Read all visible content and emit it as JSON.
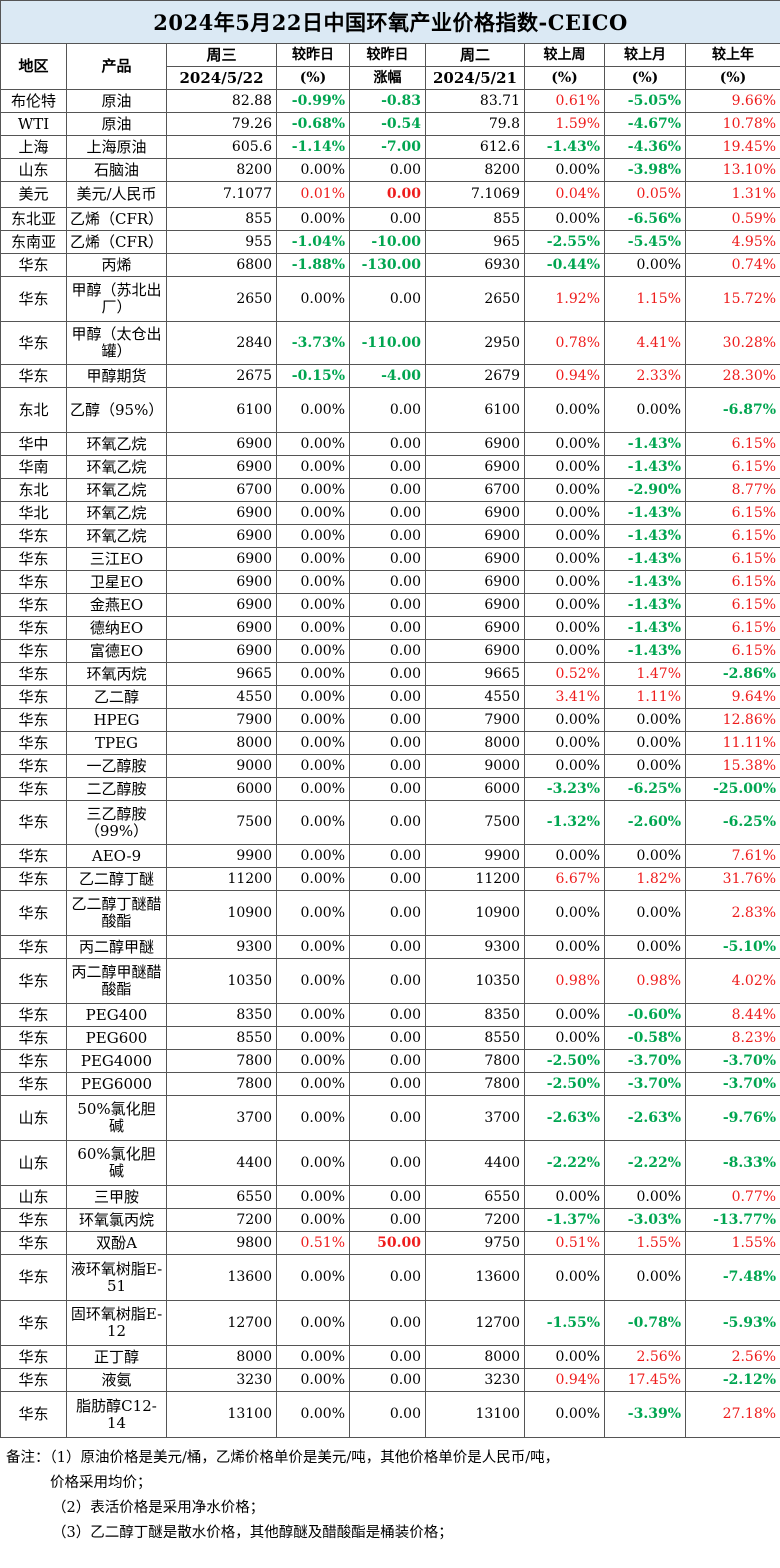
{
  "title": "2024年5月22日中国环氧产业价格指数-CEICO",
  "headers": {
    "region": "地区",
    "product": "产品",
    "wed": "周三",
    "wed_date": "2024/5/22",
    "vs_yesterday_a": "较昨日",
    "vs_yesterday_a_unit": "(%)",
    "vs_yesterday_b": "较昨日",
    "vs_yesterday_b_unit": "涨幅",
    "tue": "周二",
    "tue_date": "2024/5/21",
    "vs_week": "较上周",
    "vs_week_unit": "(%)",
    "vs_month": "较上月",
    "vs_month_unit": "(%)",
    "vs_year": "较上年",
    "vs_year_unit": "(%)"
  },
  "rows": [
    {
      "region": "布伦特",
      "product": "原油",
      "wed": "82.88",
      "pct": "-0.99%",
      "chg": "-0.83",
      "tue": "83.71",
      "wk": "0.61%",
      "mo": "-5.05%",
      "yr": "9.66%"
    },
    {
      "region": "WTI",
      "product": "原油",
      "wed": "79.26",
      "pct": "-0.68%",
      "chg": "-0.54",
      "tue": "79.8",
      "wk": "1.59%",
      "mo": "-4.67%",
      "yr": "10.78%"
    },
    {
      "region": "上海",
      "product": "上海原油",
      "wed": "605.6",
      "pct": "-1.14%",
      "chg": "-7.00",
      "tue": "612.6",
      "wk": "-1.43%",
      "mo": "-4.36%",
      "yr": "19.45%"
    },
    {
      "region": "山东",
      "product": "石脑油",
      "wed": "8200",
      "pct": "0.00%",
      "chg": "0.00",
      "tue": "8200",
      "wk": "0.00%",
      "mo": "-3.98%",
      "yr": "13.10%"
    },
    {
      "region": "美元",
      "product": "美元/人民币",
      "wed": "7.1077",
      "pct": "0.01%",
      "chg": "0.00",
      "tue": "7.1069",
      "wk": "0.04%",
      "mo": "0.05%",
      "yr": "1.31%"
    },
    {
      "region": "东北亚",
      "product": "乙烯（CFR）",
      "wed": "855",
      "pct": "0.00%",
      "chg": "0.00",
      "tue": "855",
      "wk": "0.00%",
      "mo": "-6.56%",
      "yr": "0.59%"
    },
    {
      "region": "东南亚",
      "product": "乙烯（CFR）",
      "wed": "955",
      "pct": "-1.04%",
      "chg": "-10.00",
      "tue": "965",
      "wk": "-2.55%",
      "mo": "-5.45%",
      "yr": "4.95%"
    },
    {
      "region": "华东",
      "product": "丙烯",
      "wed": "6800",
      "pct": "-1.88%",
      "chg": "-130.00",
      "tue": "6930",
      "wk": "-0.44%",
      "mo": "0.00%",
      "yr": "0.74%"
    },
    {
      "region": "华东",
      "product": "甲醇（苏北出厂）",
      "wed": "2650",
      "pct": "0.00%",
      "chg": "0.00",
      "tue": "2650",
      "wk": "1.92%",
      "mo": "1.15%",
      "yr": "15.72%"
    },
    {
      "region": "华东",
      "product": "甲醇（太仓出罐）",
      "wed": "2840",
      "pct": "-3.73%",
      "chg": "-110.00",
      "tue": "2950",
      "wk": "0.78%",
      "mo": "4.41%",
      "yr": "30.28%"
    },
    {
      "region": "华东",
      "product": "甲醇期货",
      "wed": "2675",
      "pct": "-0.15%",
      "chg": "-4.00",
      "tue": "2679",
      "wk": "0.94%",
      "mo": "2.33%",
      "yr": "28.30%"
    },
    {
      "region": "东北",
      "product": "乙醇（95%）",
      "wed": "6100",
      "pct": "0.00%",
      "chg": "0.00",
      "tue": "6100",
      "wk": "0.00%",
      "mo": "0.00%",
      "yr": "-6.87%"
    },
    {
      "region": "华中",
      "product": "环氧乙烷",
      "wed": "6900",
      "pct": "0.00%",
      "chg": "0.00",
      "tue": "6900",
      "wk": "0.00%",
      "mo": "-1.43%",
      "yr": "6.15%"
    },
    {
      "region": "华南",
      "product": "环氧乙烷",
      "wed": "6900",
      "pct": "0.00%",
      "chg": "0.00",
      "tue": "6900",
      "wk": "0.00%",
      "mo": "-1.43%",
      "yr": "6.15%"
    },
    {
      "region": "东北",
      "product": "环氧乙烷",
      "wed": "6700",
      "pct": "0.00%",
      "chg": "0.00",
      "tue": "6700",
      "wk": "0.00%",
      "mo": "-2.90%",
      "yr": "8.77%"
    },
    {
      "region": "华北",
      "product": "环氧乙烷",
      "wed": "6900",
      "pct": "0.00%",
      "chg": "0.00",
      "tue": "6900",
      "wk": "0.00%",
      "mo": "-1.43%",
      "yr": "6.15%"
    },
    {
      "region": "华东",
      "product": "环氧乙烷",
      "wed": "6900",
      "pct": "0.00%",
      "chg": "0.00",
      "tue": "6900",
      "wk": "0.00%",
      "mo": "-1.43%",
      "yr": "6.15%"
    },
    {
      "region": "华东",
      "product": "三江EO",
      "wed": "6900",
      "pct": "0.00%",
      "chg": "0.00",
      "tue": "6900",
      "wk": "0.00%",
      "mo": "-1.43%",
      "yr": "6.15%"
    },
    {
      "region": "华东",
      "product": "卫星EO",
      "wed": "6900",
      "pct": "0.00%",
      "chg": "0.00",
      "tue": "6900",
      "wk": "0.00%",
      "mo": "-1.43%",
      "yr": "6.15%"
    },
    {
      "region": "华东",
      "product": "金燕EO",
      "wed": "6900",
      "pct": "0.00%",
      "chg": "0.00",
      "tue": "6900",
      "wk": "0.00%",
      "mo": "-1.43%",
      "yr": "6.15%"
    },
    {
      "region": "华东",
      "product": "德纳EO",
      "wed": "6900",
      "pct": "0.00%",
      "chg": "0.00",
      "tue": "6900",
      "wk": "0.00%",
      "mo": "-1.43%",
      "yr": "6.15%"
    },
    {
      "region": "华东",
      "product": "富德EO",
      "wed": "6900",
      "pct": "0.00%",
      "chg": "0.00",
      "tue": "6900",
      "wk": "0.00%",
      "mo": "-1.43%",
      "yr": "6.15%"
    },
    {
      "region": "华东",
      "product": "环氧丙烷",
      "wed": "9665",
      "pct": "0.00%",
      "chg": "0.00",
      "tue": "9665",
      "wk": "0.52%",
      "mo": "1.47%",
      "yr": "-2.86%"
    },
    {
      "region": "华东",
      "product": "乙二醇",
      "wed": "4550",
      "pct": "0.00%",
      "chg": "0.00",
      "tue": "4550",
      "wk": "3.41%",
      "mo": "1.11%",
      "yr": "9.64%"
    },
    {
      "region": "华东",
      "product": "HPEG",
      "wed": "7900",
      "pct": "0.00%",
      "chg": "0.00",
      "tue": "7900",
      "wk": "0.00%",
      "mo": "0.00%",
      "yr": "12.86%"
    },
    {
      "region": "华东",
      "product": "TPEG",
      "wed": "8000",
      "pct": "0.00%",
      "chg": "0.00",
      "tue": "8000",
      "wk": "0.00%",
      "mo": "0.00%",
      "yr": "11.11%"
    },
    {
      "region": "华东",
      "product": "一乙醇胺",
      "wed": "9000",
      "pct": "0.00%",
      "chg": "0.00",
      "tue": "9000",
      "wk": "0.00%",
      "mo": "0.00%",
      "yr": "15.38%"
    },
    {
      "region": "华东",
      "product": "二乙醇胺",
      "wed": "6000",
      "pct": "0.00%",
      "chg": "0.00",
      "tue": "6000",
      "wk": "-3.23%",
      "mo": "-6.25%",
      "yr": "-25.00%"
    },
    {
      "region": "华东",
      "product": "三乙醇胺（99%）",
      "wed": "7500",
      "pct": "0.00%",
      "chg": "0.00",
      "tue": "7500",
      "wk": "-1.32%",
      "mo": "-2.60%",
      "yr": "-6.25%"
    },
    {
      "region": "华东",
      "product": "AEO-9",
      "wed": "9900",
      "pct": "0.00%",
      "chg": "0.00",
      "tue": "9900",
      "wk": "0.00%",
      "mo": "0.00%",
      "yr": "7.61%"
    },
    {
      "region": "华东",
      "product": "乙二醇丁醚",
      "wed": "11200",
      "pct": "0.00%",
      "chg": "0.00",
      "tue": "11200",
      "wk": "6.67%",
      "mo": "1.82%",
      "yr": "31.76%"
    },
    {
      "region": "华东",
      "product": "乙二醇丁醚醋酸酯",
      "wed": "10900",
      "pct": "0.00%",
      "chg": "0.00",
      "tue": "10900",
      "wk": "0.00%",
      "mo": "0.00%",
      "yr": "2.83%"
    },
    {
      "region": "华东",
      "product": "丙二醇甲醚",
      "wed": "9300",
      "pct": "0.00%",
      "chg": "0.00",
      "tue": "9300",
      "wk": "0.00%",
      "mo": "0.00%",
      "yr": "-5.10%"
    },
    {
      "region": "华东",
      "product": "丙二醇甲醚醋酸酯",
      "wed": "10350",
      "pct": "0.00%",
      "chg": "0.00",
      "tue": "10350",
      "wk": "0.98%",
      "mo": "0.98%",
      "yr": "4.02%"
    },
    {
      "region": "华东",
      "product": "PEG400",
      "wed": "8350",
      "pct": "0.00%",
      "chg": "0.00",
      "tue": "8350",
      "wk": "0.00%",
      "mo": "-0.60%",
      "yr": "8.44%"
    },
    {
      "region": "华东",
      "product": "PEG600",
      "wed": "8550",
      "pct": "0.00%",
      "chg": "0.00",
      "tue": "8550",
      "wk": "0.00%",
      "mo": "-0.58%",
      "yr": "8.23%"
    },
    {
      "region": "华东",
      "product": "PEG4000",
      "wed": "7800",
      "pct": "0.00%",
      "chg": "0.00",
      "tue": "7800",
      "wk": "-2.50%",
      "mo": "-3.70%",
      "yr": "-3.70%"
    },
    {
      "region": "华东",
      "product": "PEG6000",
      "wed": "7800",
      "pct": "0.00%",
      "chg": "0.00",
      "tue": "7800",
      "wk": "-2.50%",
      "mo": "-3.70%",
      "yr": "-3.70%"
    },
    {
      "region": "山东",
      "product": "50%氯化胆碱",
      "wed": "3700",
      "pct": "0.00%",
      "chg": "0.00",
      "tue": "3700",
      "wk": "-2.63%",
      "mo": "-2.63%",
      "yr": "-9.76%"
    },
    {
      "region": "山东",
      "product": "60%氯化胆碱",
      "wed": "4400",
      "pct": "0.00%",
      "chg": "0.00",
      "tue": "4400",
      "wk": "-2.22%",
      "mo": "-2.22%",
      "yr": "-8.33%"
    },
    {
      "region": "山东",
      "product": "三甲胺",
      "wed": "6550",
      "pct": "0.00%",
      "chg": "0.00",
      "tue": "6550",
      "wk": "0.00%",
      "mo": "0.00%",
      "yr": "0.77%"
    },
    {
      "region": "华东",
      "product": "环氧氯丙烷",
      "wed": "7200",
      "pct": "0.00%",
      "chg": "0.00",
      "tue": "7200",
      "wk": "-1.37%",
      "mo": "-3.03%",
      "yr": "-13.77%"
    },
    {
      "region": "华东",
      "product": "双酚A",
      "wed": "9800",
      "pct": "0.51%",
      "chg": "50.00",
      "tue": "9750",
      "wk": "0.51%",
      "mo": "1.55%",
      "yr": "1.55%"
    },
    {
      "region": "华东",
      "product": "液环氧树脂E-51",
      "wed": "13600",
      "pct": "0.00%",
      "chg": "0.00",
      "tue": "13600",
      "wk": "0.00%",
      "mo": "0.00%",
      "yr": "-7.48%"
    },
    {
      "region": "华东",
      "product": "固环氧树脂E-12",
      "wed": "12700",
      "pct": "0.00%",
      "chg": "0.00",
      "tue": "12700",
      "wk": "-1.55%",
      "mo": "-0.78%",
      "yr": "-5.93%"
    },
    {
      "region": "华东",
      "product": "正丁醇",
      "wed": "8000",
      "pct": "0.00%",
      "chg": "0.00",
      "tue": "8000",
      "wk": "0.00%",
      "mo": "2.56%",
      "yr": "2.56%"
    },
    {
      "region": "华东",
      "product": "液氨",
      "wed": "3230",
      "pct": "0.00%",
      "chg": "0.00",
      "tue": "3230",
      "wk": "0.94%",
      "mo": "17.45%",
      "yr": "-2.12%"
    },
    {
      "region": "华东",
      "product": "脂肪醇C12-14",
      "wed": "13100",
      "pct": "0.00%",
      "chg": "0.00",
      "tue": "13100",
      "wk": "0.00%",
      "mo": "-3.39%",
      "yr": "27.18%"
    }
  ],
  "notes": {
    "line1": "备注：（1）原油价格是美元/桶，乙烯价格单价是美元/吨，其他价格单价是人民币/吨，",
    "line2": "价格采用均价；",
    "line3": "（2）表活价格是采用净水价格；",
    "line4": "（3）乙二醇丁醚是散水价格，其他醇醚及醋酸酯是桶装价格；"
  },
  "colors": {
    "up": "#ee1c1c",
    "down": "#00a550",
    "title_bg": "#dbe9f4"
  }
}
